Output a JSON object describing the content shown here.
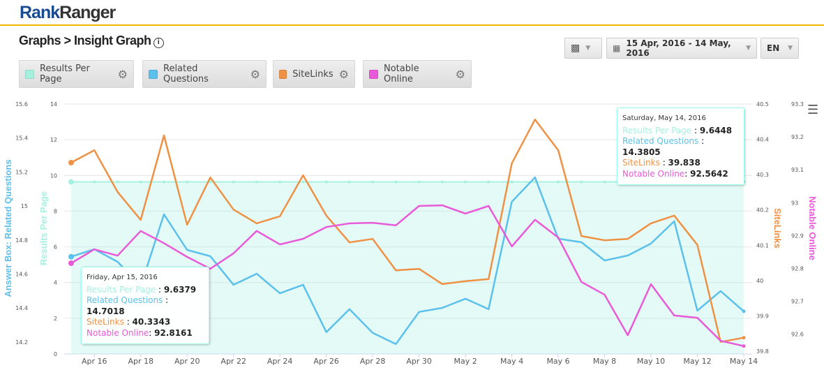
{
  "header": {
    "logo_part1": "Rank",
    "logo_part2": "Ranger"
  },
  "page": {
    "title": "Graphs > Insight Graph",
    "info_icon": "info-icon"
  },
  "controls": {
    "date_range": "15 Apr, 2016 - 14 May, 2016",
    "language": "EN"
  },
  "legend": [
    {
      "label": "Results Per Page",
      "color": "#a6f0e0"
    },
    {
      "label": "Related Questions",
      "color": "#5bc0eb"
    },
    {
      "label": "SiteLinks",
      "color": "#ef9145"
    },
    {
      "label": "Notable Online",
      "color": "#e85ad8"
    }
  ],
  "tooltips": [
    {
      "date": "Friday, Apr 15, 2016",
      "rows": [
        {
          "name": "Results Per Page",
          "sep": " : ",
          "value": "9.6379"
        },
        {
          "name": "Related Questions",
          "sep": " : ",
          "value": "14.7018"
        },
        {
          "name": "SiteLinks",
          "sep": " : ",
          "value": "40.3343"
        },
        {
          "name": "Notable Online",
          "sep": ": ",
          "value": "92.8161"
        }
      ]
    },
    {
      "date": "Saturday, May 14, 2016",
      "rows": [
        {
          "name": "Results Per Page",
          "sep": " : ",
          "value": "9.6448"
        },
        {
          "name": "Related Questions",
          "sep": " : ",
          "value": "14.3805"
        },
        {
          "name": "SiteLinks",
          "sep": " : ",
          "value": "39.838"
        },
        {
          "name": "Notable Online",
          "sep": ": ",
          "value": "92.5642"
        }
      ]
    }
  ],
  "chart_data": {
    "type": "line",
    "x_tick_labels": [
      "Apr 16",
      "Apr 18",
      "Apr 20",
      "Apr 22",
      "Apr 24",
      "Apr 26",
      "Apr 28",
      "Apr 30",
      "May 2",
      "May 4",
      "May 6",
      "May 8",
      "May 10",
      "May 12",
      "May 14"
    ],
    "x_start": "Apr 15, 2016",
    "days": 30,
    "axes": [
      {
        "id": "rq",
        "title": "Answer Box: Related Questions",
        "range": [
          14.13,
          15.6
        ],
        "ticks": [
          "15.6",
          "15.4",
          "15.2",
          "15",
          "14.8",
          "14.6",
          "14.4",
          "14.2"
        ],
        "tick_values": [
          15.6,
          15.4,
          15.2,
          15,
          14.8,
          14.6,
          14.4,
          14.2
        ],
        "color": "#5bc0eb"
      },
      {
        "id": "rpp",
        "title": "Results Per Page",
        "range": [
          0,
          14
        ],
        "ticks": [
          "14",
          "12",
          "10",
          "8",
          "6",
          "4",
          "2",
          "0"
        ],
        "tick_values": [
          14,
          12,
          10,
          8,
          6,
          4,
          2,
          0
        ],
        "color": "#a6f0e0"
      },
      {
        "id": "sl",
        "title": "SiteLinks",
        "range": [
          39.792,
          40.5
        ],
        "ticks": [
          "40.5",
          "40.4",
          "40.3",
          "40.2",
          "40.1",
          "40",
          "39.9",
          "39.8"
        ],
        "tick_values": [
          40.5,
          40.4,
          40.3,
          40.2,
          40.1,
          40,
          39.9,
          39.8
        ],
        "color": "#ef9145"
      },
      {
        "id": "no",
        "title": "Notable Online",
        "range": [
          92.54,
          93.3
        ],
        "ticks": [
          "93.3",
          "93.2",
          "93.1",
          "93",
          "92.9",
          "92.8",
          "92.7",
          "92.6"
        ],
        "tick_values": [
          93.3,
          93.2,
          93.1,
          93,
          92.9,
          92.8,
          92.7,
          92.6
        ],
        "color": "#e85ad8"
      }
    ],
    "series": [
      {
        "name": "Results Per Page",
        "axis": "rpp",
        "type": "area",
        "values": [
          9.638,
          9.64,
          9.64,
          9.64,
          9.64,
          9.64,
          9.64,
          9.64,
          9.64,
          9.64,
          9.64,
          9.64,
          9.64,
          9.64,
          9.64,
          9.64,
          9.64,
          9.64,
          9.64,
          9.64,
          9.64,
          9.64,
          9.64,
          9.64,
          9.64,
          9.64,
          9.64,
          9.64,
          9.64,
          9.645
        ]
      },
      {
        "name": "Related Questions",
        "axis": "rq",
        "values": [
          14.702,
          14.746,
          14.672,
          14.529,
          14.951,
          14.742,
          14.705,
          14.537,
          14.602,
          14.487,
          14.537,
          14.258,
          14.393,
          14.254,
          14.188,
          14.377,
          14.401,
          14.455,
          14.393,
          15.025,
          15.169,
          14.808,
          14.787,
          14.68,
          14.709,
          14.779,
          14.91,
          14.385,
          14.5,
          14.381
        ]
      },
      {
        "name": "SiteLinks",
        "axis": "sl",
        "values": [
          40.334,
          40.369,
          40.251,
          40.172,
          40.411,
          40.158,
          40.292,
          40.201,
          40.162,
          40.182,
          40.298,
          40.184,
          40.108,
          40.118,
          40.029,
          40.033,
          39.99,
          39.998,
          40.004,
          40.332,
          40.456,
          40.369,
          40.126,
          40.114,
          40.118,
          40.162,
          40.184,
          40.101,
          39.826,
          39.838
        ]
      },
      {
        "name": "Notable Online",
        "axis": "no",
        "values": [
          92.816,
          92.858,
          92.839,
          92.914,
          92.877,
          92.835,
          92.799,
          92.846,
          92.914,
          92.873,
          92.89,
          92.926,
          92.937,
          92.939,
          92.931,
          92.99,
          92.992,
          92.967,
          92.99,
          92.867,
          92.948,
          92.894,
          92.759,
          92.72,
          92.597,
          92.752,
          92.657,
          92.65,
          92.58,
          92.564
        ]
      }
    ]
  }
}
